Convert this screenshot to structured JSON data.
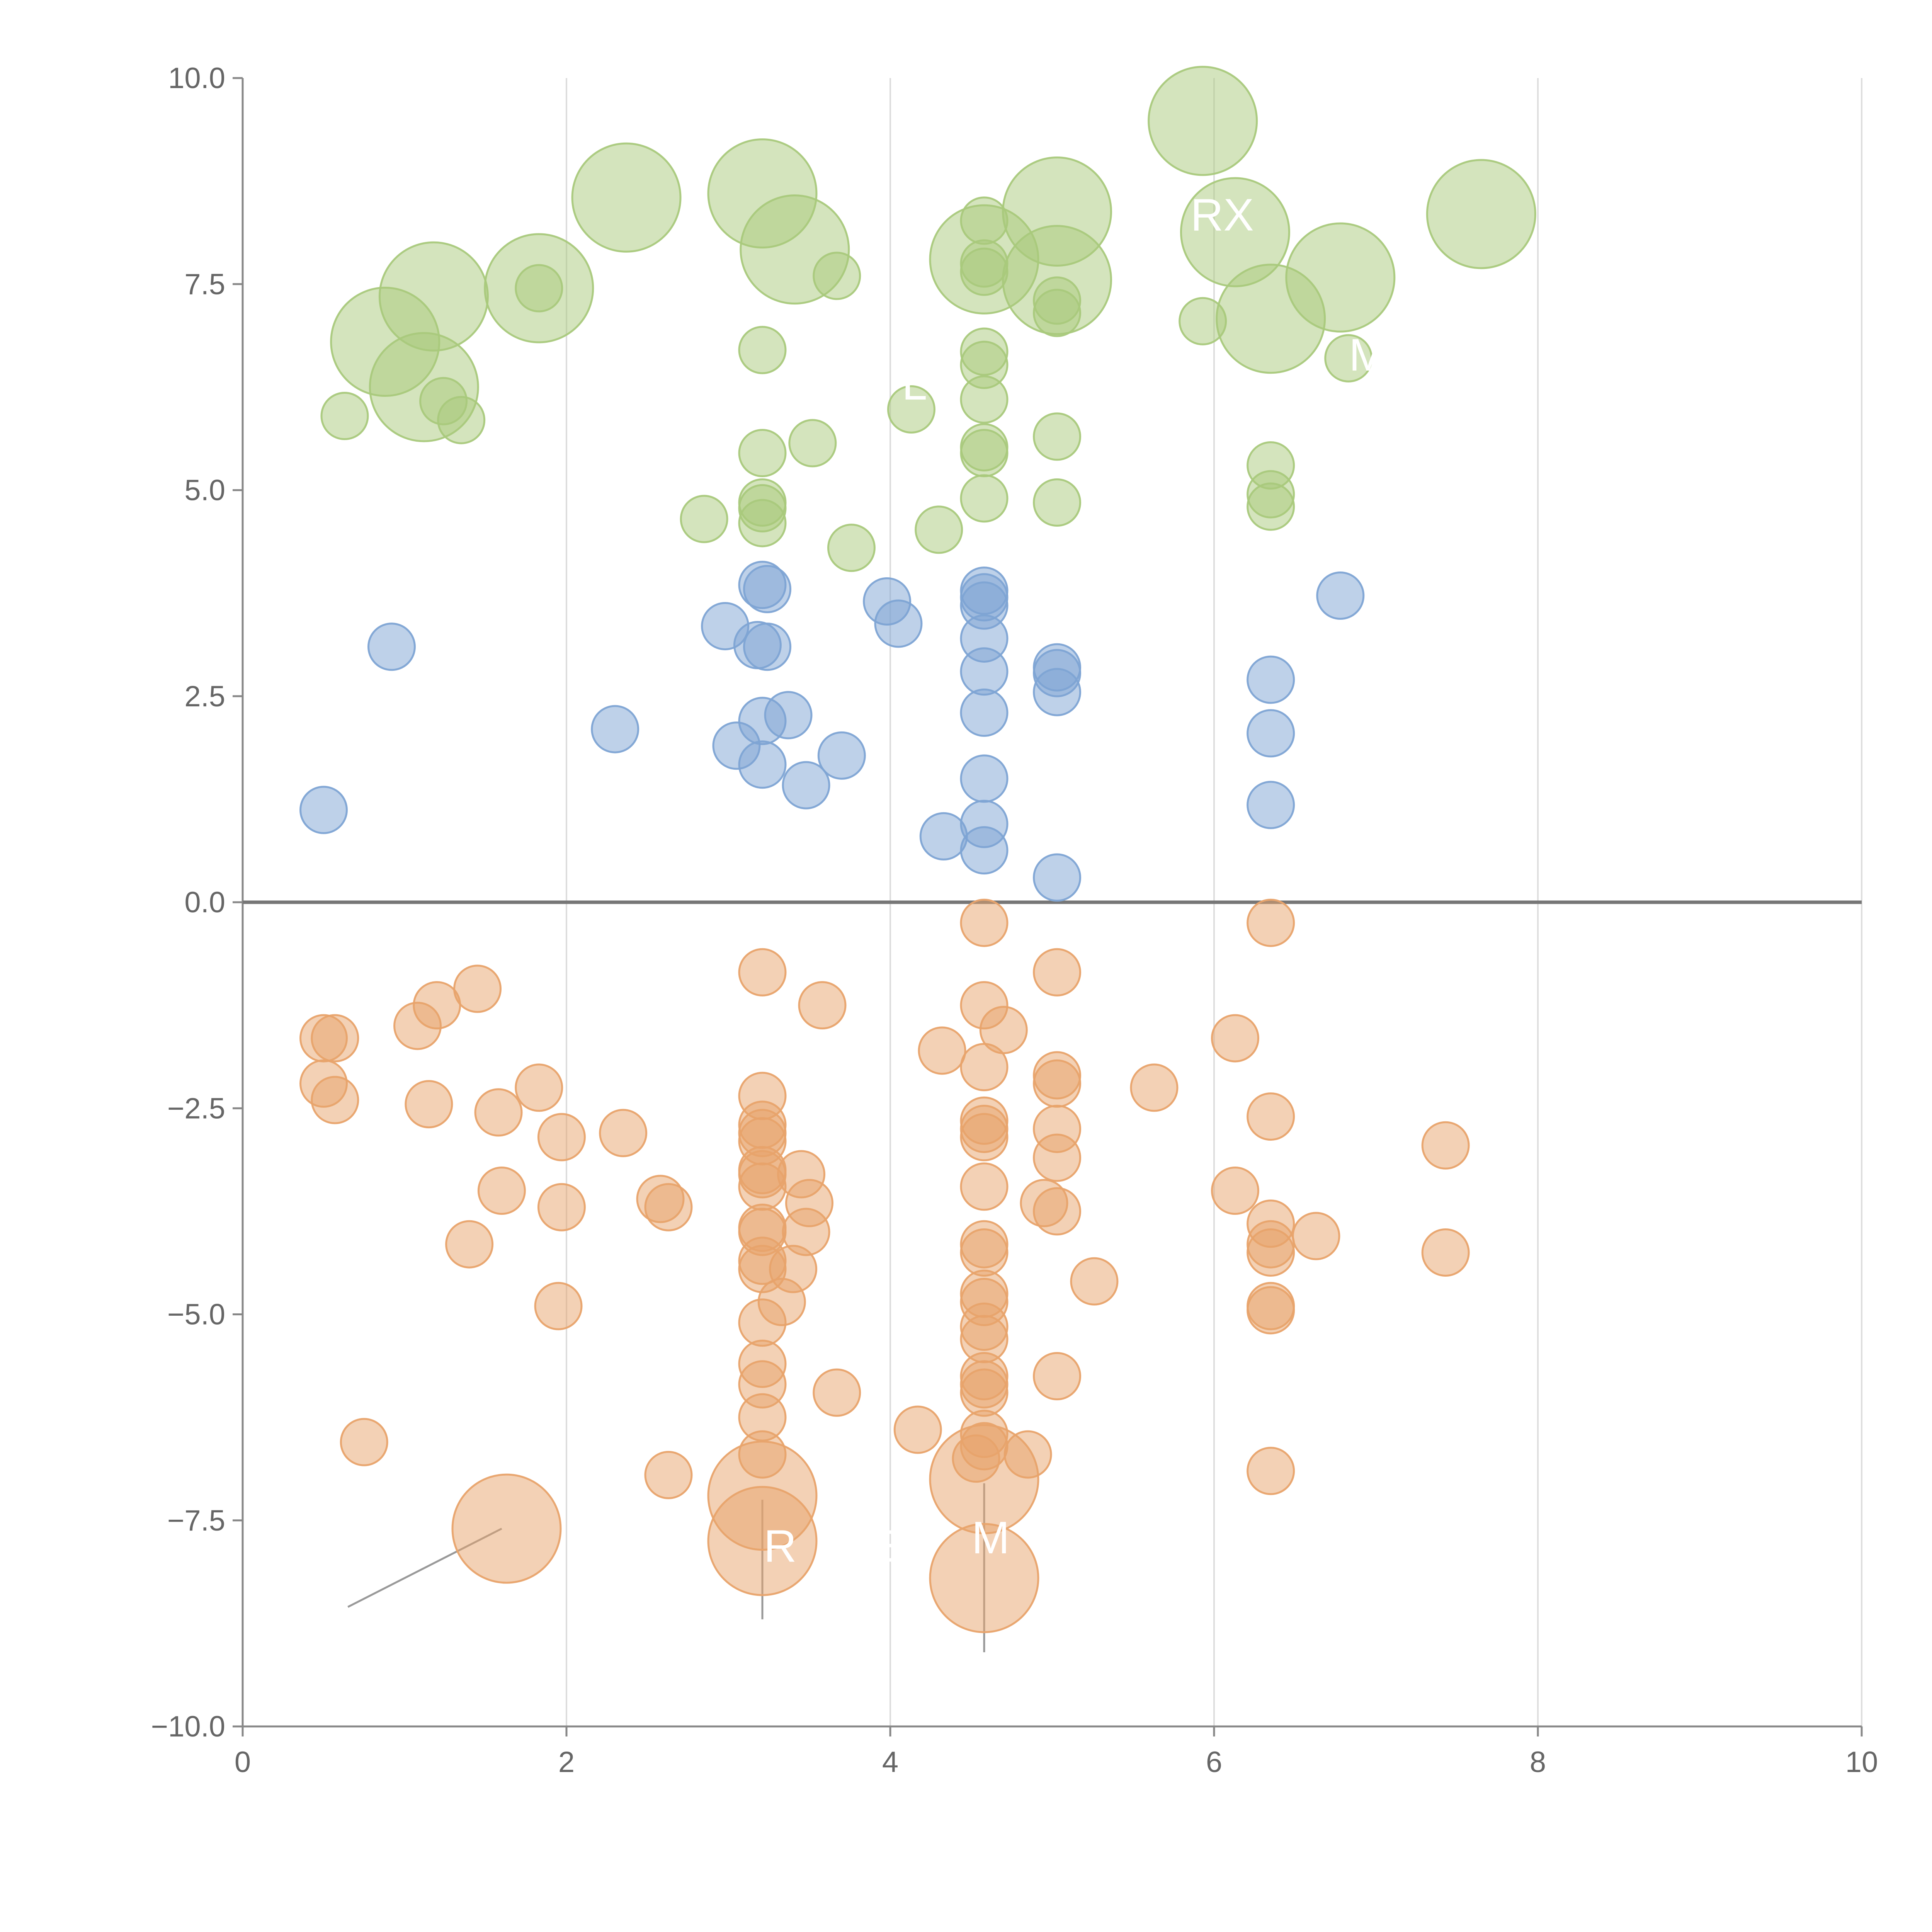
{
  "chart_data": {
    "type": "scatter",
    "title": "",
    "xlabel": "",
    "ylabel": "",
    "xlim": [
      0,
      10
    ],
    "ylim": [
      -10,
      10
    ],
    "x_ticks": [
      0,
      2,
      4,
      6,
      8,
      10
    ],
    "y_ticks": [
      -10.0,
      -7.5,
      -5.0,
      -2.5,
      0.0,
      2.5,
      5.0,
      7.5,
      10.0
    ],
    "x_tick_labels": [
      "0",
      "2",
      "4",
      "6",
      "8",
      "10"
    ],
    "y_tick_labels": [
      "−10.0",
      "−7.5",
      "−5.0",
      "−2.5",
      "0.0",
      "2.5",
      "5.0",
      "7.5",
      "10.0"
    ],
    "grid": "vertical",
    "zero_line": 0,
    "legend": "none",
    "marker_scale": "bubble size in relative units (1 = small circle)",
    "colors": {
      "green": "#a9c97c",
      "blue": "#7ea4d4",
      "orange": "#e8a36c",
      "leader": "#999999"
    },
    "series": [
      {
        "name": "green",
        "points": [
          [
            0.63,
            5.9,
            1
          ],
          [
            0.88,
            6.8,
            2.2
          ],
          [
            1.12,
            6.25,
            2.2
          ],
          [
            1.18,
            7.35,
            2.2
          ],
          [
            1.24,
            6.08,
            1
          ],
          [
            1.35,
            5.85,
            1
          ],
          [
            1.83,
            7.45,
            2.2
          ],
          [
            1.83,
            7.45,
            1
          ],
          [
            2.37,
            8.55,
            2.2
          ],
          [
            2.85,
            4.65,
            1
          ],
          [
            3.21,
            8.6,
            2.2
          ],
          [
            3.21,
            6.7,
            1
          ],
          [
            3.21,
            5.45,
            1
          ],
          [
            3.21,
            4.85,
            1
          ],
          [
            3.21,
            4.78,
            1
          ],
          [
            3.21,
            4.6,
            1
          ],
          [
            3.41,
            7.92,
            2.2
          ],
          [
            3.52,
            5.57,
            1
          ],
          [
            3.67,
            7.6,
            1
          ],
          [
            3.76,
            4.3,
            1
          ],
          [
            4.13,
            5.98,
            1
          ],
          [
            4.3,
            4.52,
            1
          ],
          [
            4.58,
            8.27,
            1
          ],
          [
            4.58,
            7.8,
            2.2
          ],
          [
            4.58,
            7.75,
            1
          ],
          [
            4.58,
            7.65,
            1
          ],
          [
            4.58,
            6.68,
            1
          ],
          [
            4.58,
            6.52,
            1
          ],
          [
            4.58,
            6.1,
            1
          ],
          [
            4.58,
            5.52,
            1
          ],
          [
            4.58,
            5.45,
            1
          ],
          [
            4.58,
            4.9,
            1
          ],
          [
            5.03,
            8.38,
            2.2
          ],
          [
            5.03,
            7.55,
            2.2
          ],
          [
            5.03,
            7.3,
            1
          ],
          [
            5.03,
            7.15,
            1
          ],
          [
            5.03,
            5.65,
            1
          ],
          [
            5.03,
            4.85,
            1
          ],
          [
            5.93,
            9.48,
            2.2
          ],
          [
            5.93,
            7.05,
            1
          ],
          [
            6.13,
            8.13,
            2.2
          ],
          [
            6.35,
            7.08,
            2.2
          ],
          [
            6.35,
            5.3,
            1
          ],
          [
            6.35,
            4.95,
            1
          ],
          [
            6.35,
            4.8,
            1
          ],
          [
            6.78,
            7.58,
            2.2
          ],
          [
            6.83,
            6.6,
            1
          ],
          [
            7.65,
            8.35,
            2.2
          ]
        ]
      },
      {
        "name": "blue",
        "points": [
          [
            0.5,
            1.12,
            1
          ],
          [
            0.92,
            3.1,
            1
          ],
          [
            2.3,
            2.1,
            1
          ],
          [
            2.98,
            3.35,
            1
          ],
          [
            3.05,
            1.9,
            1
          ],
          [
            3.18,
            3.12,
            1
          ],
          [
            3.21,
            3.85,
            1
          ],
          [
            3.21,
            2.2,
            1
          ],
          [
            3.21,
            1.67,
            1
          ],
          [
            3.24,
            3.8,
            1
          ],
          [
            3.24,
            3.1,
            1
          ],
          [
            3.37,
            2.27,
            1
          ],
          [
            3.48,
            1.42,
            1
          ],
          [
            3.7,
            1.78,
            1
          ],
          [
            3.98,
            3.65,
            1
          ],
          [
            4.05,
            3.38,
            1
          ],
          [
            4.33,
            0.8,
            1
          ],
          [
            4.58,
            3.78,
            1
          ],
          [
            4.58,
            3.7,
            1
          ],
          [
            4.58,
            3.6,
            1
          ],
          [
            4.58,
            3.2,
            1
          ],
          [
            4.58,
            2.8,
            1
          ],
          [
            4.58,
            2.3,
            1
          ],
          [
            4.58,
            1.5,
            1
          ],
          [
            4.58,
            0.95,
            1
          ],
          [
            4.58,
            0.63,
            1
          ],
          [
            5.03,
            2.85,
            1
          ],
          [
            5.03,
            2.78,
            1
          ],
          [
            5.03,
            2.55,
            1
          ],
          [
            5.03,
            0.3,
            1
          ],
          [
            6.35,
            2.7,
            1
          ],
          [
            6.35,
            2.05,
            1
          ],
          [
            6.35,
            1.18,
            1
          ],
          [
            6.78,
            3.72,
            1
          ]
        ]
      },
      {
        "name": "orange",
        "points": [
          [
            0.5,
            -1.65,
            1
          ],
          [
            0.5,
            -2.2,
            1
          ],
          [
            0.57,
            -2.4,
            1
          ],
          [
            0.57,
            -1.65,
            1
          ],
          [
            0.75,
            -6.55,
            1
          ],
          [
            1.08,
            -1.5,
            1
          ],
          [
            1.15,
            -2.45,
            1
          ],
          [
            1.2,
            -1.25,
            1
          ],
          [
            1.45,
            -1.05,
            1
          ],
          [
            1.4,
            -4.15,
            1
          ],
          [
            1.6,
            -3.5,
            1
          ],
          [
            1.58,
            -2.55,
            1
          ],
          [
            1.63,
            -7.6,
            2.2
          ],
          [
            1.83,
            -2.25,
            1
          ],
          [
            1.95,
            -4.9,
            1
          ],
          [
            1.97,
            -3.7,
            1
          ],
          [
            1.97,
            -2.85,
            1
          ],
          [
            2.35,
            -2.8,
            1
          ],
          [
            2.58,
            -3.6,
            1
          ],
          [
            2.63,
            -3.7,
            1
          ],
          [
            2.63,
            -6.95,
            1
          ],
          [
            3.21,
            -0.85,
            1
          ],
          [
            3.21,
            -2.35,
            1
          ],
          [
            3.21,
            -2.7,
            1
          ],
          [
            3.21,
            -2.8,
            1
          ],
          [
            3.21,
            -2.9,
            1
          ],
          [
            3.21,
            -3.25,
            1
          ],
          [
            3.21,
            -3.3,
            1
          ],
          [
            3.21,
            -3.45,
            1
          ],
          [
            3.21,
            -3.95,
            1
          ],
          [
            3.21,
            -4.0,
            1
          ],
          [
            3.21,
            -4.35,
            1
          ],
          [
            3.21,
            -4.45,
            1
          ],
          [
            3.21,
            -5.1,
            1
          ],
          [
            3.21,
            -5.6,
            1
          ],
          [
            3.21,
            -5.85,
            1
          ],
          [
            3.21,
            -6.25,
            1
          ],
          [
            3.21,
            -6.7,
            1
          ],
          [
            3.21,
            -7.2,
            2.2
          ],
          [
            3.21,
            -7.75,
            2.2
          ],
          [
            3.33,
            -4.85,
            1
          ],
          [
            3.4,
            -4.45,
            1
          ],
          [
            3.45,
            -3.3,
            1
          ],
          [
            3.48,
            -4.0,
            1
          ],
          [
            3.5,
            -3.65,
            1
          ],
          [
            3.58,
            -1.25,
            1
          ],
          [
            3.67,
            -5.95,
            1
          ],
          [
            4.17,
            -6.4,
            1
          ],
          [
            4.32,
            -1.8,
            1
          ],
          [
            4.53,
            -6.75,
            1
          ],
          [
            4.58,
            -0.25,
            1
          ],
          [
            4.58,
            -1.25,
            1
          ],
          [
            4.58,
            -2.0,
            1
          ],
          [
            4.58,
            -2.65,
            1
          ],
          [
            4.58,
            -2.75,
            1
          ],
          [
            4.58,
            -2.85,
            1
          ],
          [
            4.58,
            -3.45,
            1
          ],
          [
            4.58,
            -4.15,
            1
          ],
          [
            4.58,
            -4.25,
            1
          ],
          [
            4.58,
            -4.75,
            1
          ],
          [
            4.58,
            -4.85,
            1
          ],
          [
            4.58,
            -5.15,
            1
          ],
          [
            4.58,
            -5.3,
            1
          ],
          [
            4.58,
            -5.75,
            1
          ],
          [
            4.58,
            -5.85,
            1
          ],
          [
            4.58,
            -5.95,
            1
          ],
          [
            4.58,
            -6.45,
            1
          ],
          [
            4.58,
            -6.6,
            1
          ],
          [
            4.58,
            -7.0,
            2.2
          ],
          [
            4.58,
            -8.2,
            2.2
          ],
          [
            4.7,
            -1.55,
            1
          ],
          [
            4.85,
            -6.7,
            1
          ],
          [
            4.95,
            -3.65,
            1
          ],
          [
            5.03,
            -0.85,
            1
          ],
          [
            5.03,
            -2.1,
            1
          ],
          [
            5.03,
            -2.2,
            1
          ],
          [
            5.03,
            -2.75,
            1
          ],
          [
            5.03,
            -3.1,
            1
          ],
          [
            5.03,
            -3.75,
            1
          ],
          [
            5.03,
            -5.75,
            1
          ],
          [
            5.26,
            -4.6,
            1
          ],
          [
            5.63,
            -2.25,
            1
          ],
          [
            6.13,
            -1.65,
            1
          ],
          [
            6.13,
            -3.5,
            1
          ],
          [
            6.35,
            -0.25,
            1
          ],
          [
            6.35,
            -2.6,
            1
          ],
          [
            6.35,
            -3.9,
            1
          ],
          [
            6.35,
            -4.15,
            1
          ],
          [
            6.35,
            -4.25,
            1
          ],
          [
            6.35,
            -4.9,
            1
          ],
          [
            6.35,
            -4.95,
            1
          ],
          [
            6.35,
            -6.9,
            1
          ],
          [
            6.63,
            -4.05,
            1
          ],
          [
            7.43,
            -2.95,
            1
          ],
          [
            7.43,
            -4.25,
            1
          ]
        ]
      }
    ],
    "annotations": [
      {
        "text": "RX",
        "x": 6.05,
        "y": 8.15
      },
      {
        "text": "L",
        "x": 4.15,
        "y": 6.1
      },
      {
        "text": "M",
        "x": 6.95,
        "y": 6.45
      },
      {
        "text": "R",
        "x": 3.32,
        "y": -8.0
      },
      {
        "text": "E",
        "x": 3.95,
        "y": -8.0
      },
      {
        "text": "M",
        "x": 4.62,
        "y": -7.9
      }
    ],
    "leader_lines": [
      [
        [
          0.65,
          -8.55
        ],
        [
          1.6,
          -7.6
        ]
      ],
      [
        [
          3.21,
          -7.25
        ],
        [
          3.21,
          -8.7
        ]
      ],
      [
        [
          4.58,
          -7.05
        ],
        [
          4.58,
          -9.1
        ]
      ]
    ]
  }
}
